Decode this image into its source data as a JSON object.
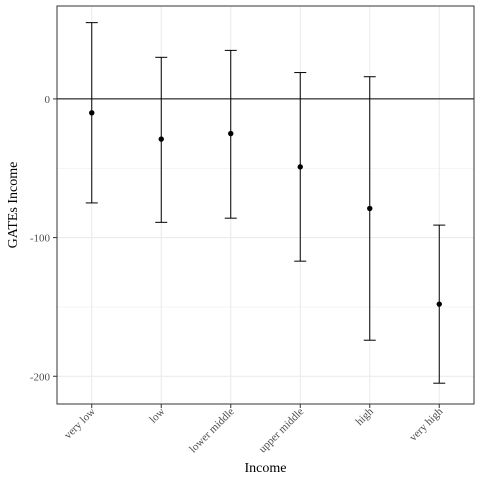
{
  "chart_data": {
    "type": "errorbar",
    "xlabel": "Income",
    "ylabel": "GATEs Income",
    "categories": [
      "very low",
      "low",
      "lower middle",
      "upper middle",
      "high",
      "very high"
    ],
    "estimates": [
      -10,
      -29,
      -25,
      -49,
      -79,
      -148
    ],
    "lower": [
      -75,
      -89,
      -86,
      -117,
      -174,
      -205
    ],
    "upper": [
      55,
      30,
      35,
      19,
      16,
      -91
    ],
    "yticks": [
      -200,
      -100,
      0
    ],
    "ylim": [
      -220,
      67
    ],
    "reference_line": 0,
    "grid": true,
    "colors": {
      "points": "#000000",
      "grid": "#ebebeb",
      "panel_border": "#333333"
    }
  }
}
